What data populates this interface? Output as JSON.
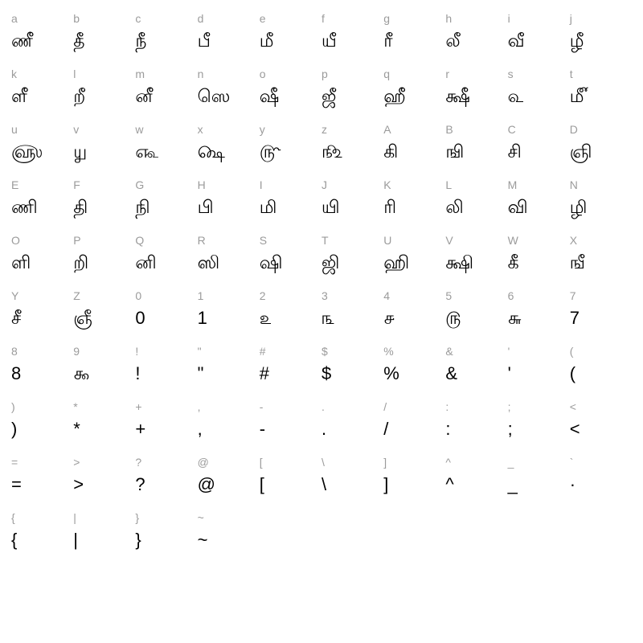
{
  "charmap": {
    "type": "table",
    "columns": 10,
    "key_color": "#9b9b9b",
    "glyph_color": "#000000",
    "key_fontsize": 14,
    "glyph_fontsize": 22,
    "background_color": "#ffffff",
    "cells": [
      {
        "key": "a",
        "glyph": "ணீ"
      },
      {
        "key": "b",
        "glyph": "தீ"
      },
      {
        "key": "c",
        "glyph": "நீ"
      },
      {
        "key": "d",
        "glyph": "பீ"
      },
      {
        "key": "e",
        "glyph": "மீ"
      },
      {
        "key": "f",
        "glyph": "யீ"
      },
      {
        "key": "g",
        "glyph": "ரீ"
      },
      {
        "key": "h",
        "glyph": "லீ"
      },
      {
        "key": "i",
        "glyph": "வீ"
      },
      {
        "key": "j",
        "glyph": "ழீ"
      },
      {
        "key": "k",
        "glyph": "ளீ"
      },
      {
        "key": "l",
        "glyph": "றீ"
      },
      {
        "key": "m",
        "glyph": "னீ"
      },
      {
        "key": "n",
        "glyph": "ஸெ"
      },
      {
        "key": "o",
        "glyph": "ஷீ"
      },
      {
        "key": "p",
        "glyph": "ஜீ"
      },
      {
        "key": "q",
        "glyph": "ஹீ"
      },
      {
        "key": "r",
        "glyph": "க்ஷீ"
      },
      {
        "key": "s",
        "glyph": "௳"
      },
      {
        "key": "t",
        "glyph": "௴"
      },
      {
        "key": "u",
        "glyph": "௵"
      },
      {
        "key": "v",
        "glyph": "௶"
      },
      {
        "key": "w",
        "glyph": "௷"
      },
      {
        "key": "x",
        "glyph": "௸"
      },
      {
        "key": "y",
        "glyph": "௹"
      },
      {
        "key": "z",
        "glyph": "௺"
      },
      {
        "key": "A",
        "glyph": "கி"
      },
      {
        "key": "B",
        "glyph": "ஙி"
      },
      {
        "key": "C",
        "glyph": "சி"
      },
      {
        "key": "D",
        "glyph": "ஞி"
      },
      {
        "key": "E",
        "glyph": "ணி"
      },
      {
        "key": "F",
        "glyph": "தி"
      },
      {
        "key": "G",
        "glyph": "நி"
      },
      {
        "key": "H",
        "glyph": "பி"
      },
      {
        "key": "I",
        "glyph": "மி"
      },
      {
        "key": "J",
        "glyph": "யி"
      },
      {
        "key": "K",
        "glyph": "ரி"
      },
      {
        "key": "L",
        "glyph": "லி"
      },
      {
        "key": "M",
        "glyph": "வி"
      },
      {
        "key": "N",
        "glyph": "ழி"
      },
      {
        "key": "O",
        "glyph": "ளி"
      },
      {
        "key": "P",
        "glyph": "றி"
      },
      {
        "key": "Q",
        "glyph": "னி"
      },
      {
        "key": "R",
        "glyph": "ஸி"
      },
      {
        "key": "S",
        "glyph": "ஷி"
      },
      {
        "key": "T",
        "glyph": "ஜி"
      },
      {
        "key": "U",
        "glyph": "ஹி"
      },
      {
        "key": "V",
        "glyph": "க்ஷி"
      },
      {
        "key": "W",
        "glyph": "கீ"
      },
      {
        "key": "X",
        "glyph": "ஙீ"
      },
      {
        "key": "Y",
        "glyph": "சீ"
      },
      {
        "key": "Z",
        "glyph": "ஞீ"
      },
      {
        "key": "0",
        "glyph": "0"
      },
      {
        "key": "1",
        "glyph": "1"
      },
      {
        "key": "2",
        "glyph": "௨"
      },
      {
        "key": "3",
        "glyph": "௩"
      },
      {
        "key": "4",
        "glyph": "௪"
      },
      {
        "key": "5",
        "glyph": "௫"
      },
      {
        "key": "6",
        "glyph": "௬"
      },
      {
        "key": "7",
        "glyph": "7"
      },
      {
        "key": "8",
        "glyph": "8"
      },
      {
        "key": "9",
        "glyph": "௯"
      },
      {
        "key": "!",
        "glyph": "!"
      },
      {
        "key": "\"",
        "glyph": "\""
      },
      {
        "key": "#",
        "glyph": "#"
      },
      {
        "key": "$",
        "glyph": "$"
      },
      {
        "key": "%",
        "glyph": "%"
      },
      {
        "key": "&",
        "glyph": "&"
      },
      {
        "key": "'",
        "glyph": "'"
      },
      {
        "key": "(",
        "glyph": "("
      },
      {
        "key": ")",
        "glyph": ")"
      },
      {
        "key": "*",
        "glyph": "*"
      },
      {
        "key": "+",
        "glyph": "+"
      },
      {
        "key": ",",
        "glyph": ","
      },
      {
        "key": "-",
        "glyph": "-"
      },
      {
        "key": ".",
        "glyph": "."
      },
      {
        "key": "/",
        "glyph": "/"
      },
      {
        "key": ":",
        "glyph": ":"
      },
      {
        "key": ";",
        "glyph": ";"
      },
      {
        "key": "<",
        "glyph": "<"
      },
      {
        "key": "=",
        "glyph": "="
      },
      {
        "key": ">",
        "glyph": ">"
      },
      {
        "key": "?",
        "glyph": "?"
      },
      {
        "key": "@",
        "glyph": "@"
      },
      {
        "key": "[",
        "glyph": "["
      },
      {
        "key": "\\",
        "glyph": "\\"
      },
      {
        "key": "]",
        "glyph": "]"
      },
      {
        "key": "^",
        "glyph": "^"
      },
      {
        "key": "_",
        "glyph": "_"
      },
      {
        "key": "`",
        "glyph": "·"
      },
      {
        "key": "{",
        "glyph": "{"
      },
      {
        "key": "|",
        "glyph": "|"
      },
      {
        "key": "}",
        "glyph": "}"
      },
      {
        "key": "~",
        "glyph": "~"
      }
    ]
  }
}
